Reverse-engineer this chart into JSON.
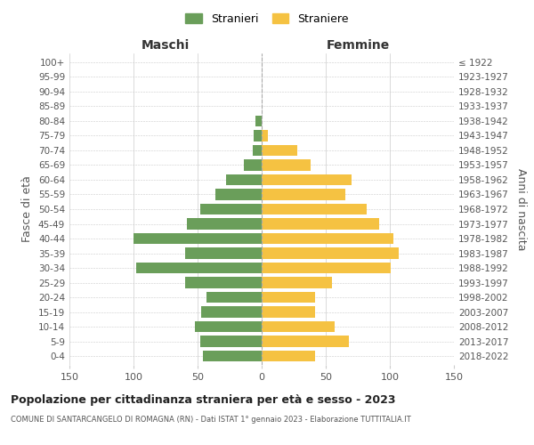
{
  "age_groups": [
    "100+",
    "95-99",
    "90-94",
    "85-89",
    "80-84",
    "75-79",
    "70-74",
    "65-69",
    "60-64",
    "55-59",
    "50-54",
    "45-49",
    "40-44",
    "35-39",
    "30-34",
    "25-29",
    "20-24",
    "15-19",
    "10-14",
    "5-9",
    "0-4"
  ],
  "birth_years": [
    "≤ 1922",
    "1923-1927",
    "1928-1932",
    "1933-1937",
    "1938-1942",
    "1943-1947",
    "1948-1952",
    "1953-1957",
    "1958-1962",
    "1963-1967",
    "1968-1972",
    "1973-1977",
    "1978-1982",
    "1983-1987",
    "1988-1992",
    "1993-1997",
    "1998-2002",
    "2003-2007",
    "2008-2012",
    "2013-2017",
    "2018-2022"
  ],
  "males": [
    0,
    0,
    0,
    0,
    5,
    6,
    7,
    14,
    28,
    36,
    48,
    58,
    100,
    60,
    98,
    60,
    43,
    47,
    52,
    48,
    46
  ],
  "females": [
    0,
    0,
    0,
    0,
    0,
    5,
    28,
    38,
    70,
    65,
    82,
    92,
    103,
    107,
    101,
    55,
    42,
    42,
    57,
    68,
    42
  ],
  "male_color": "#6a9e5a",
  "female_color": "#f5c242",
  "grid_color": "#cccccc",
  "bg_color": "#ffffff",
  "title": "Popolazione per cittadinanza straniera per età e sesso - 2023",
  "subtitle": "COMUNE DI SANTARCANGELO DI ROMAGNA (RN) - Dati ISTAT 1° gennaio 2023 - Elaborazione TUTTITALIA.IT",
  "xlabel_left": "Maschi",
  "xlabel_right": "Femmine",
  "ylabel_left": "Fasce di età",
  "ylabel_right": "Anni di nascita",
  "legend_male": "Stranieri",
  "legend_female": "Straniere",
  "xlim": 150
}
